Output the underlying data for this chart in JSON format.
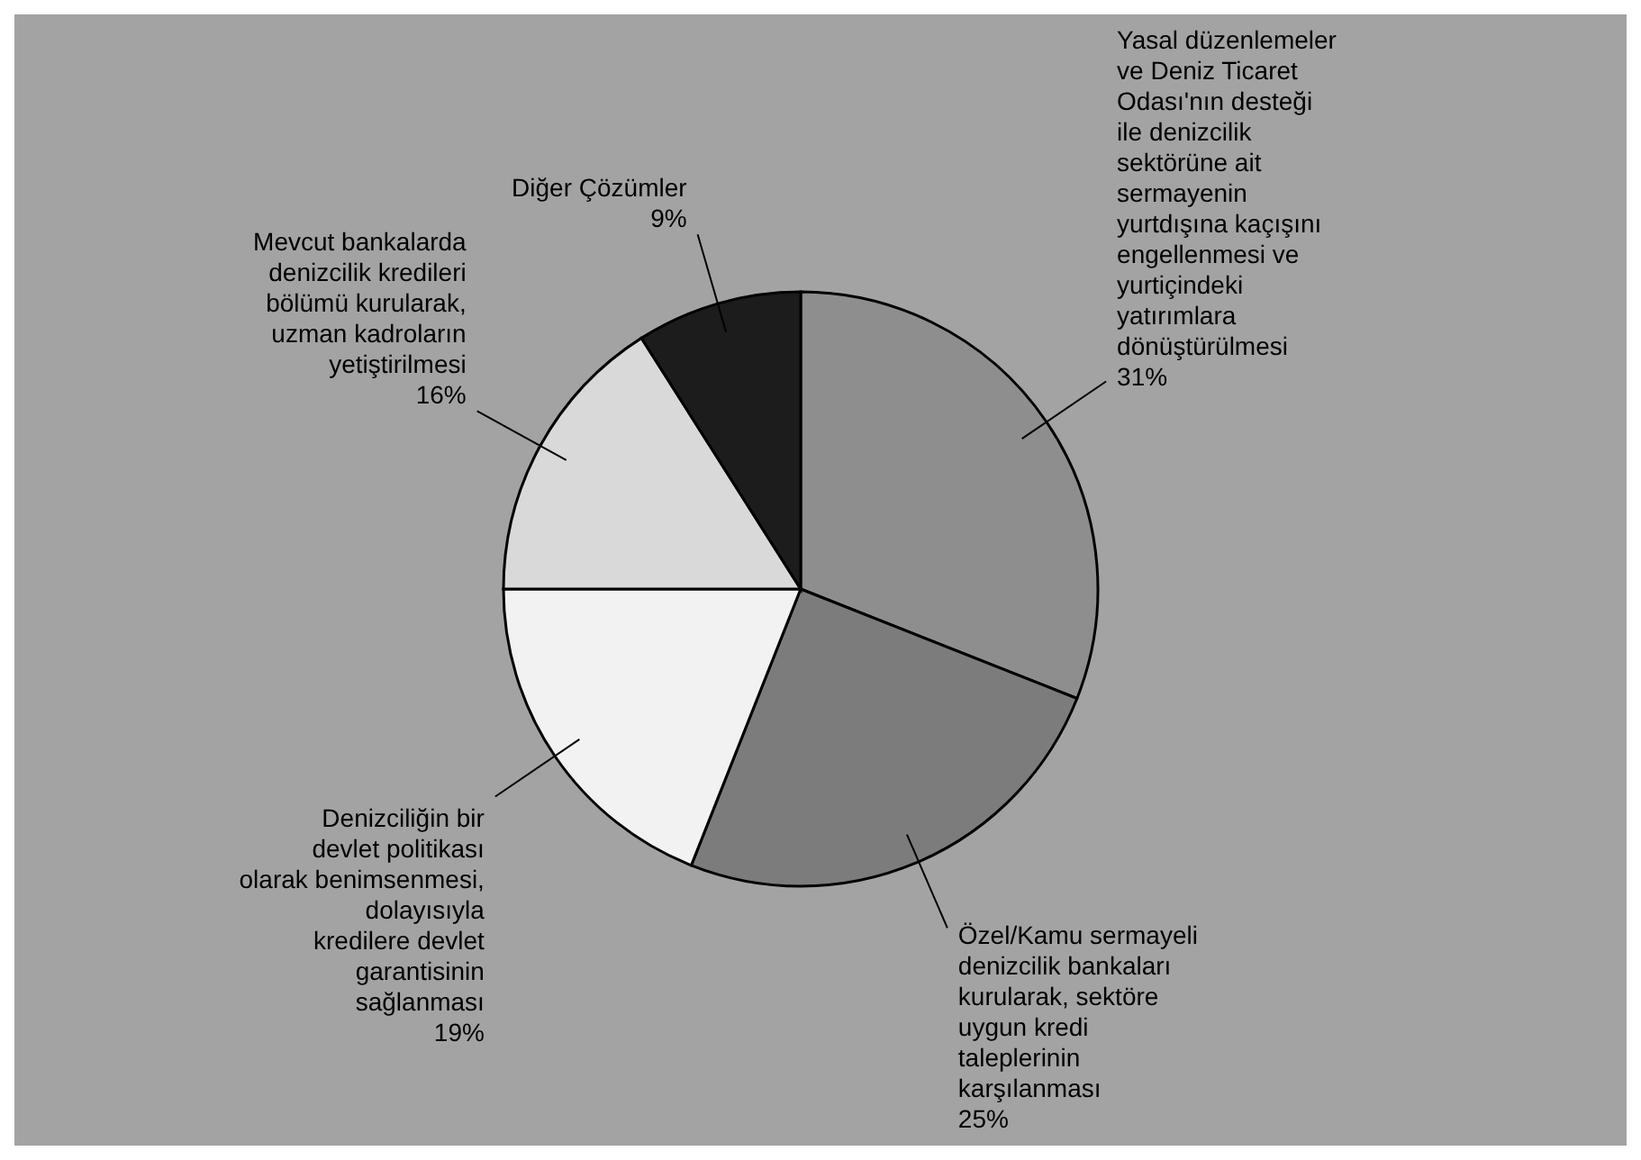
{
  "chart_data": {
    "type": "pie",
    "categories": [
      "Yasal düzenlemeler ve Deniz Ticaret Odası'nın desteği ile denizcilik sektörüne ait sermayenin yurtdışına kaçışını engellenmesi ve yurtiçindeki yatırımlara dönüştürülmesi",
      "Özel/Kamu sermayeli denizcilik bankaları kurularak, sektöre uygun kredi taleplerinin karşılanması",
      "Denizciliğin bir devlet politikası olarak benimsenmesi, dolayısıyla kredilere devlet garantisinin sağlanması",
      "Mevcut bankalarda denizcilik kredileri bölümü kurularak, uzman kadroların yetiştirilmesi",
      "Diğer Çözümler"
    ],
    "values": [
      31,
      25,
      19,
      16,
      9
    ],
    "value_labels": [
      "31%",
      "25%",
      "19%",
      "16%",
      "9%"
    ],
    "colors": [
      "#8e8e8e",
      "#7c7c7c",
      "#f2f2f2",
      "#d9d9d9",
      "#1c1c1c"
    ]
  }
}
